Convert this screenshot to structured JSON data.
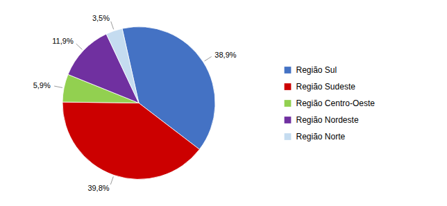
{
  "chart_data": {
    "type": "pie",
    "categories": [
      "Região Sul",
      "Região Sudeste",
      "Região Centro-Oeste",
      "Região Nordeste",
      "Região Norte"
    ],
    "values": [
      38.9,
      39.8,
      5.9,
      11.9,
      3.5
    ],
    "value_labels": [
      "38,9%",
      "39,8%",
      "5,9%",
      "11,9%",
      "3,5%"
    ],
    "colors": [
      "#4472C4",
      "#CC0000",
      "#92D050",
      "#7030A0",
      "#C5DCF0"
    ],
    "data_labels": true,
    "legend": "right"
  }
}
